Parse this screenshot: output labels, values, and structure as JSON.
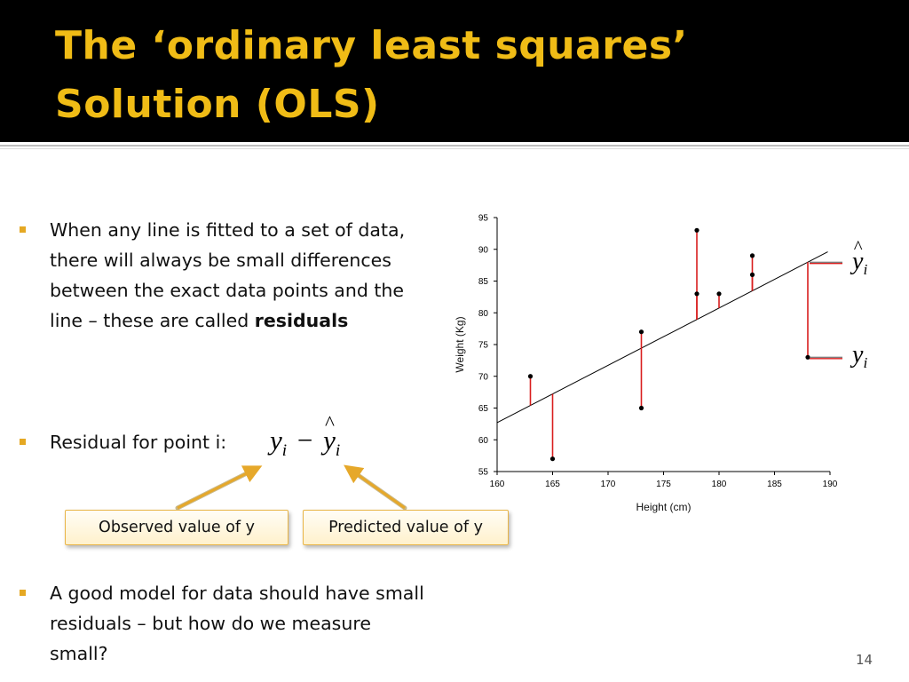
{
  "slide": {
    "title_line_1": "The ‘ordinary least squares’",
    "title_line_2": "Solution (OLS)",
    "page_number": "14",
    "accent_color": "#f0bc16",
    "bullet_color": "#e5a823"
  },
  "bullets": {
    "b1_line_1": "When any line is fitted to a set of data,",
    "b1_line_2": "there will always be small differences",
    "b1_line_3": "between the exact data points and the",
    "b1_line_4": "line – these are called ",
    "b1_bold": "residuals",
    "b2_text": "Residual for point i:",
    "b3_line_1": "A good model for data should have small",
    "b3_line_2": "residuals – but how do we measure",
    "b3_line_3": "small?"
  },
  "formula": {
    "y": "y",
    "sub": "i",
    "minus": "−",
    "hat": "^"
  },
  "callouts": {
    "observed": "Observed value of y",
    "predicted": "Predicted value of y"
  },
  "chart_data": {
    "type": "scatter",
    "xlabel": "Height (cm)",
    "ylabel": "Weight (Kg)",
    "xlim": [
      160,
      190
    ],
    "ylim": [
      55,
      95
    ],
    "x_ticks": [
      "160",
      "165",
      "170",
      "175",
      "180",
      "185",
      "190"
    ],
    "y_ticks": [
      "55",
      "60",
      "65",
      "70",
      "75",
      "80",
      "85",
      "90",
      "95"
    ],
    "points": [
      {
        "x": 163,
        "y": 70
      },
      {
        "x": 165,
        "y": 57
      },
      {
        "x": 173,
        "y": 77
      },
      {
        "x": 173,
        "y": 65
      },
      {
        "x": 178,
        "y": 93
      },
      {
        "x": 178,
        "y": 83
      },
      {
        "x": 180,
        "y": 83
      },
      {
        "x": 183,
        "y": 89
      },
      {
        "x": 183,
        "y": 86
      },
      {
        "x": 188,
        "y": 73
      }
    ],
    "fit_line": {
      "x": [
        160,
        189.8
      ],
      "y": [
        62.7,
        89.6
      ]
    },
    "residual_color": "#d91e1e",
    "annotations": {
      "fitted_label": "ŷi",
      "observed_label": "yi"
    }
  }
}
